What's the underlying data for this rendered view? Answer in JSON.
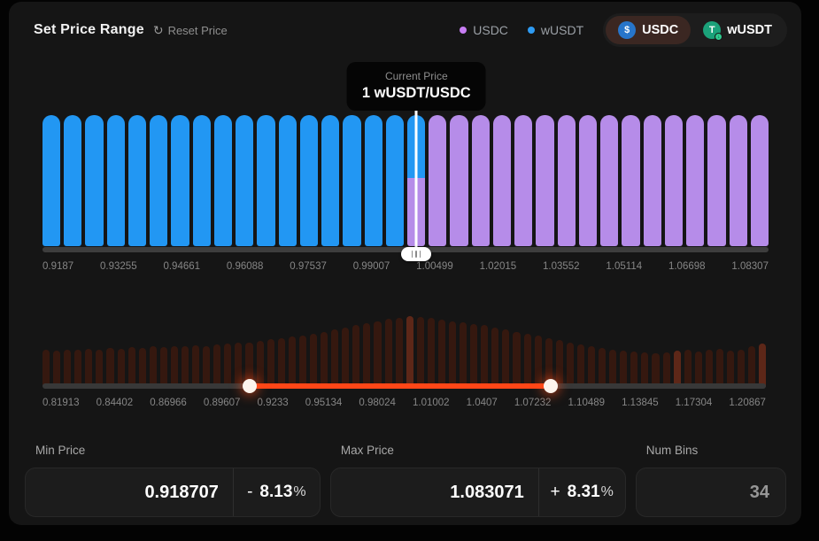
{
  "header": {
    "title": "Set Price Range",
    "reset_label": "Reset Price",
    "legend": [
      {
        "label": "USDC",
        "color": "#c77df3"
      },
      {
        "label": "wUSDT",
        "color": "#2e9bf3"
      }
    ],
    "toggle": [
      {
        "label": "USDC",
        "active": true,
        "coin_color": "#2775ca",
        "coin_glyph": "$"
      },
      {
        "label": "wUSDT",
        "active": false,
        "coin_color": "#1ba27a",
        "coin_glyph": "T"
      }
    ],
    "active_toggle_bg": "#3b2722"
  },
  "tooltip": {
    "title": "Current Price",
    "value": "1 wUSDT/USDC"
  },
  "chart_data": [
    {
      "type": "bar",
      "name": "liquidity-bins",
      "bin_count": 34,
      "current_price_bin_index": 17,
      "bins_left_color": "#2297f3",
      "bins_right_color": "#b68ce9",
      "current_bin_split": {
        "top_color": "#2297f3",
        "top_fraction": 0.48,
        "bottom_color": "#b68ce9"
      },
      "bar_height_uniform": true,
      "baseline_color": "#3d3d3d",
      "x_tick_labels": [
        "0.9187",
        "0.93255",
        "0.94661",
        "0.96088",
        "0.97537",
        "0.99007",
        "1.00499",
        "1.02015",
        "1.03552",
        "1.05114",
        "1.06698",
        "1.08307"
      ]
    },
    {
      "type": "bar",
      "name": "price-range-minimap",
      "x_tick_labels": [
        "0.81913",
        "0.84402",
        "0.86966",
        "0.89607",
        "0.9233",
        "0.95134",
        "0.98024",
        "1.01002",
        "1.0407",
        "1.07232",
        "1.10489",
        "1.13845",
        "1.17304",
        "1.20867"
      ],
      "bar_color": "#35180f",
      "highlight_bar_color": "#5d2718",
      "highlight_bar_indices": [
        34,
        59,
        67
      ],
      "bar_heights_pct": [
        52,
        51,
        53,
        52,
        54,
        53,
        55,
        54,
        56,
        55,
        57,
        56,
        58,
        57,
        59,
        58,
        60,
        61,
        62,
        63,
        65,
        67,
        69,
        71,
        73,
        75,
        78,
        81,
        84,
        87,
        90,
        93,
        96,
        98,
        100,
        99,
        97,
        95,
        93,
        91,
        89,
        87,
        84,
        81,
        78,
        75,
        72,
        69,
        66,
        63,
        60,
        57,
        55,
        53,
        51,
        50,
        49,
        48,
        49,
        51,
        53,
        50,
        52,
        54,
        51,
        53,
        57,
        61
      ],
      "range_slider": {
        "start_pct": 28.7,
        "end_pct": 70.2,
        "track_color": "#383838",
        "active_color": "#ff4617",
        "selected_min_label": "0.9233",
        "selected_max_label": "1.07232"
      }
    }
  ],
  "fields": {
    "min_price": {
      "label": "Min Price",
      "value": "0.918707",
      "delta_sign": "-",
      "delta_value": "8.13",
      "delta_unit": "%"
    },
    "max_price": {
      "label": "Max Price",
      "value": "1.083071",
      "delta_sign": "+",
      "delta_value": "8.31",
      "delta_unit": "%"
    },
    "num_bins": {
      "label": "Num Bins",
      "value": "34"
    }
  }
}
